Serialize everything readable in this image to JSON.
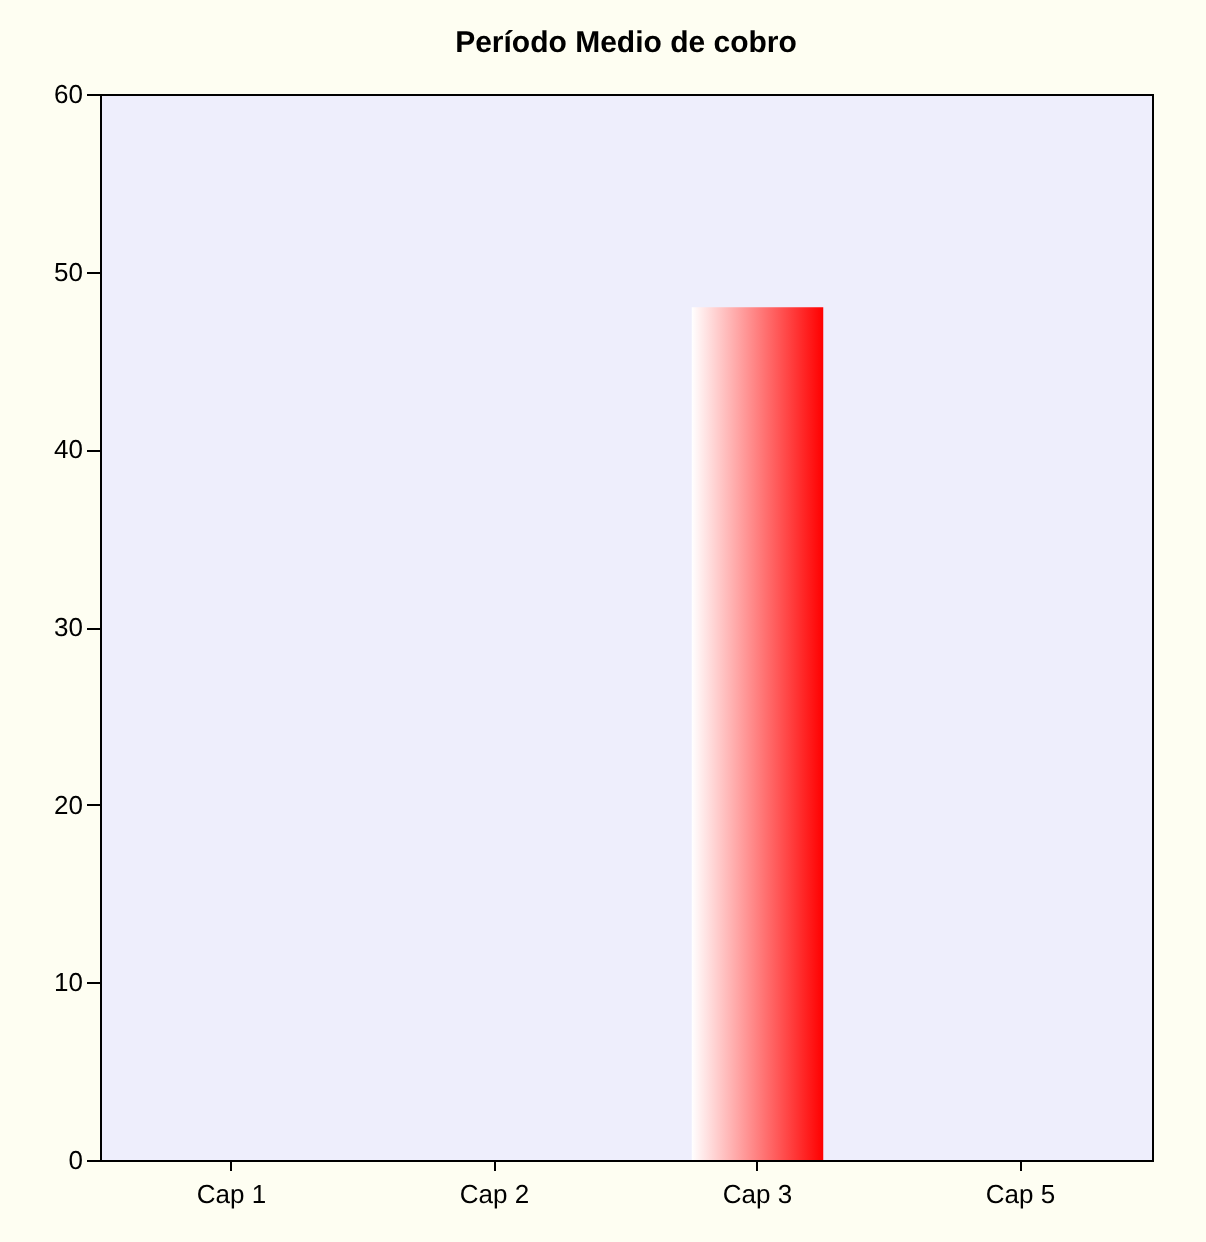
{
  "chart_data": {
    "type": "bar",
    "title": "Período Medio de cobro",
    "categories": [
      "Cap 1",
      "Cap 2",
      "Cap 3",
      "Cap 5"
    ],
    "values": [
      null,
      null,
      48,
      null
    ],
    "color": "#ff0000",
    "ylim": [
      0,
      60
    ],
    "yticks": [
      0,
      10,
      20,
      30,
      40,
      50,
      60
    ],
    "grid": false
  }
}
